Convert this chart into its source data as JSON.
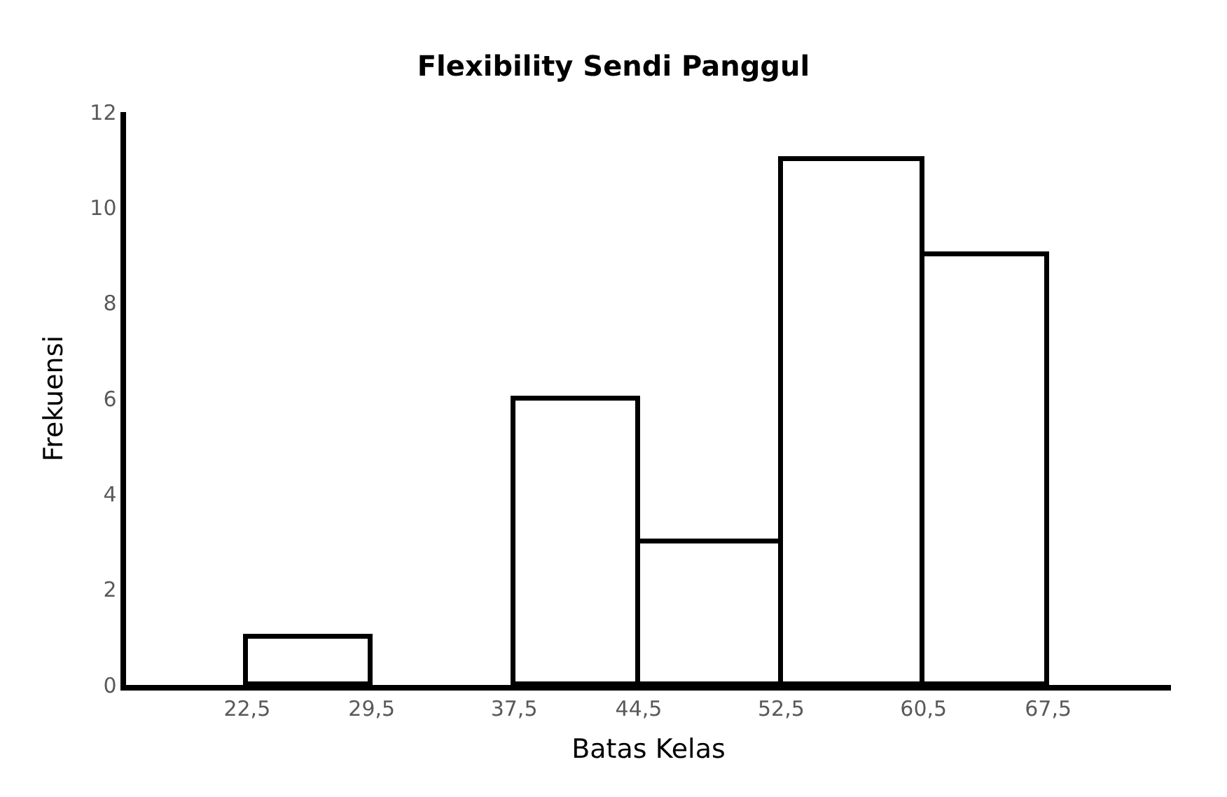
{
  "chart_data": {
    "type": "histogram",
    "title": "Flexibility Sendi Panggul",
    "xlabel": "Batas Kelas",
    "ylabel": "Frekuensi",
    "bins": [
      22.5,
      29.5,
      37.5,
      44.5,
      52.5,
      60.5,
      67.5
    ],
    "values": [
      1,
      0,
      6,
      3,
      11,
      9
    ],
    "color": "#ffffff",
    "xlim": [
      15.7,
      74.4
    ],
    "xticks": [
      {
        "value": 22.5,
        "label": "22,5"
      },
      {
        "value": 29.5,
        "label": "29,5"
      },
      {
        "value": 37.5,
        "label": "37,5"
      },
      {
        "value": 44.5,
        "label": "44,5"
      },
      {
        "value": 52.5,
        "label": "52,5"
      },
      {
        "value": 60.5,
        "label": "60,5"
      },
      {
        "value": 67.5,
        "label": "67,5"
      }
    ],
    "ylim": [
      0,
      12
    ],
    "yticks": [
      0,
      2,
      4,
      6,
      8,
      10,
      12
    ]
  }
}
